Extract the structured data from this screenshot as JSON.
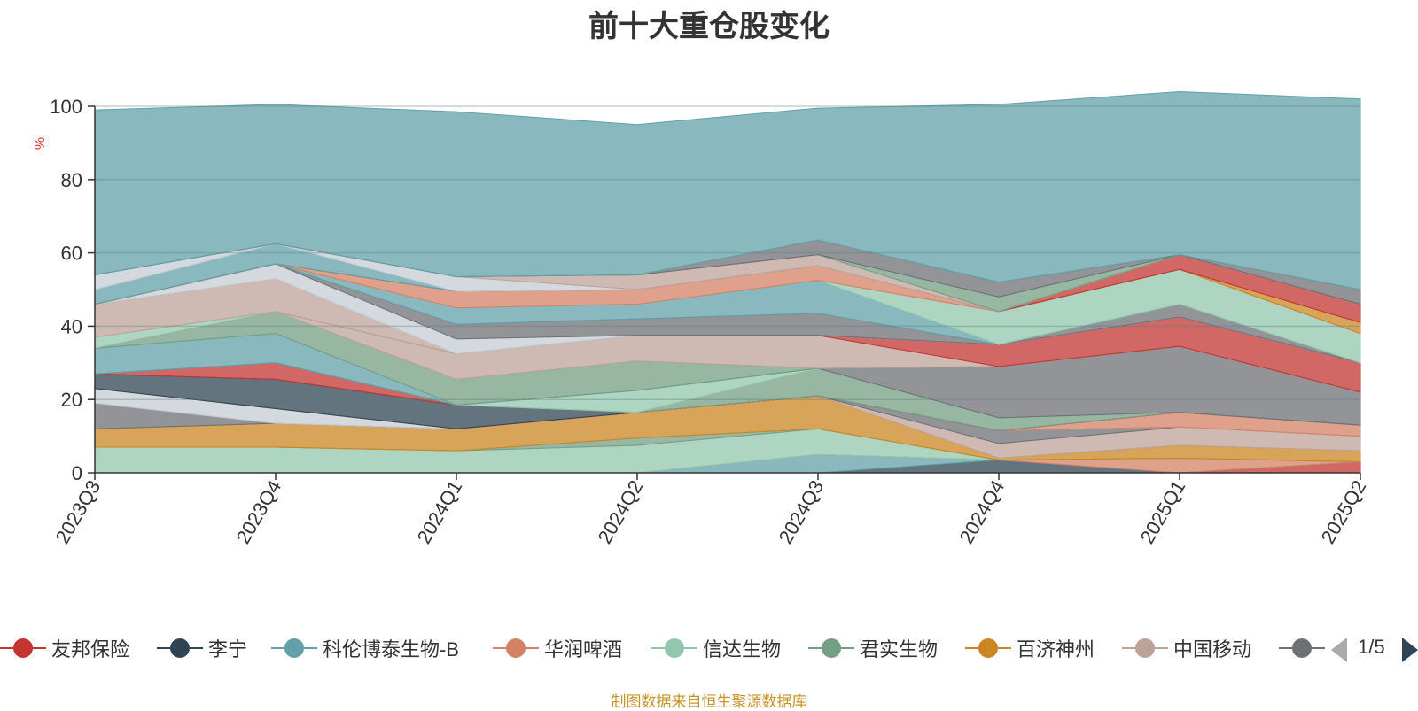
{
  "title": "前十大重仓股变化",
  "source_note": "制图数据来自恒生聚源数据库",
  "legend_pager": "1/5",
  "chart_data": {
    "type": "area",
    "stacked": true,
    "title": "前十大重仓股变化",
    "ylabel": "%",
    "ylim": [
      0,
      100
    ],
    "yticks": [
      0,
      20,
      40,
      60,
      80,
      100
    ],
    "grid": true,
    "legend_position": "bottom",
    "categories": [
      "2023Q3",
      "2023Q4",
      "2024Q1",
      "2024Q2",
      "2024Q3",
      "2024Q4",
      "2025Q1",
      "2025Q2"
    ],
    "series": [
      {
        "name": "友邦保险",
        "color": "#c23531",
        "values": [
          0,
          0,
          0,
          0,
          0,
          0,
          0,
          3
        ]
      },
      {
        "name": "李宁",
        "color": "#2f4554",
        "values": [
          0,
          0,
          0,
          0,
          0,
          3.5,
          0,
          0
        ]
      },
      {
        "name": "科伦博泰生物-B",
        "color": "#61a0a8",
        "values": [
          0,
          0,
          0,
          0,
          5,
          0,
          0,
          0
        ]
      },
      {
        "name": "华润啤酒",
        "color": "#d48265",
        "values": [
          0,
          0,
          0,
          0,
          0,
          0,
          4,
          0
        ]
      },
      {
        "name": "信达生物",
        "color": "#91c7ae",
        "values": [
          7,
          7,
          6,
          7.5,
          7,
          0,
          0,
          0
        ]
      },
      {
        "name": "君实生物",
        "color": "#749f83",
        "values": [
          0,
          0,
          0,
          2,
          0,
          0,
          0,
          0
        ]
      },
      {
        "name": "百济神州",
        "color": "#ca8622",
        "values": [
          5,
          6.5,
          6,
          7,
          9,
          0.5,
          3.5,
          3
        ]
      },
      {
        "name": "中国移动",
        "color": "#bda29a",
        "values": [
          0,
          0,
          0,
          0,
          0,
          4,
          5,
          4
        ]
      },
      {
        "name": "",
        "color": "#6e7074",
        "values": [
          7,
          0,
          0,
          0,
          0,
          3.5,
          0,
          0
        ]
      },
      {
        "name": "",
        "color": "#c4ccd3",
        "values": [
          4,
          4,
          0,
          0,
          0,
          0,
          0,
          0
        ]
      },
      {
        "name": "",
        "color": "#d48265",
        "values": [
          0,
          0,
          0,
          0,
          0,
          0,
          4,
          3
        ]
      },
      {
        "name": "",
        "color": "#2f4554",
        "values": [
          4,
          8,
          6.5,
          0,
          0,
          0,
          0,
          0
        ]
      },
      {
        "name": "",
        "color": "#c23531",
        "values": [
          0,
          4.5,
          0,
          0,
          0,
          0,
          0,
          0
        ]
      },
      {
        "name": "",
        "color": "#749f83",
        "values": [
          0,
          0,
          0,
          0,
          7.5,
          3.5,
          0,
          0
        ]
      },
      {
        "name": "",
        "color": "#91c7ae",
        "values": [
          0,
          0,
          0,
          6,
          0,
          0,
          0,
          0
        ]
      },
      {
        "name": "",
        "color": "#6e7074",
        "values": [
          0,
          0,
          0,
          0,
          0,
          14,
          18,
          9
        ]
      },
      {
        "name": "",
        "color": "#61a0a8",
        "values": [
          7,
          8,
          0,
          0,
          0,
          0,
          0,
          0
        ]
      },
      {
        "name": "",
        "color": "#749f83",
        "values": [
          0,
          6,
          7,
          8,
          0,
          0,
          0,
          0
        ]
      },
      {
        "name": "",
        "color": "#bda29a",
        "values": [
          0,
          0,
          7,
          7,
          9,
          0,
          0,
          0
        ]
      },
      {
        "name": "",
        "color": "#c23531",
        "values": [
          0,
          0,
          0,
          0,
          0,
          6,
          8,
          8
        ]
      },
      {
        "name": "",
        "color": "#91c7ae",
        "values": [
          3,
          0,
          0,
          0,
          0,
          0,
          0,
          0
        ]
      },
      {
        "name": "",
        "color": "#bda29a",
        "values": [
          9,
          9,
          0,
          0,
          0,
          0,
          0,
          0
        ]
      },
      {
        "name": "",
        "color": "#c4ccd3",
        "values": [
          0,
          4,
          4,
          0,
          0,
          0,
          0,
          0
        ]
      },
      {
        "name": "",
        "color": "#6e7074",
        "values": [
          0,
          0,
          4,
          4.5,
          6,
          0,
          3.5,
          0
        ]
      },
      {
        "name": "",
        "color": "#61a0a8",
        "values": [
          0,
          0,
          4.5,
          4,
          9,
          0,
          0,
          0
        ]
      },
      {
        "name": "",
        "color": "#91c7ae",
        "values": [
          0,
          0,
          0,
          0,
          0,
          9,
          9.5,
          8
        ]
      },
      {
        "name": "",
        "color": "#d48265",
        "values": [
          0,
          0,
          4.5,
          4,
          4,
          0,
          0,
          0
        ]
      },
      {
        "name": "",
        "color": "#ca8622",
        "values": [
          0,
          0,
          0,
          0,
          0,
          0,
          0,
          3
        ]
      },
      {
        "name": "",
        "color": "#c23531",
        "values": [
          0,
          0,
          0,
          0,
          0,
          0,
          4,
          5
        ]
      },
      {
        "name": "",
        "color": "#61a0a8",
        "values": [
          4,
          5.5,
          0,
          0,
          0,
          0,
          0,
          0
        ]
      },
      {
        "name": "",
        "color": "#c4ccd3",
        "values": [
          4,
          0,
          4,
          0,
          0,
          0,
          0,
          0
        ]
      },
      {
        "name": "",
        "color": "#bda29a",
        "values": [
          0,
          0,
          0,
          4,
          3,
          0,
          0,
          0
        ]
      },
      {
        "name": "",
        "color": "#749f83",
        "values": [
          0,
          0,
          0,
          0,
          0,
          4,
          0,
          0
        ]
      },
      {
        "name": "",
        "color": "#6e7074",
        "values": [
          0,
          0,
          0,
          0,
          4,
          4,
          0,
          4
        ]
      },
      {
        "name": "",
        "color": "#61a0a8",
        "values": [
          45,
          38,
          45,
          41,
          36,
          48.5,
          44.5,
          52
        ]
      }
    ]
  }
}
